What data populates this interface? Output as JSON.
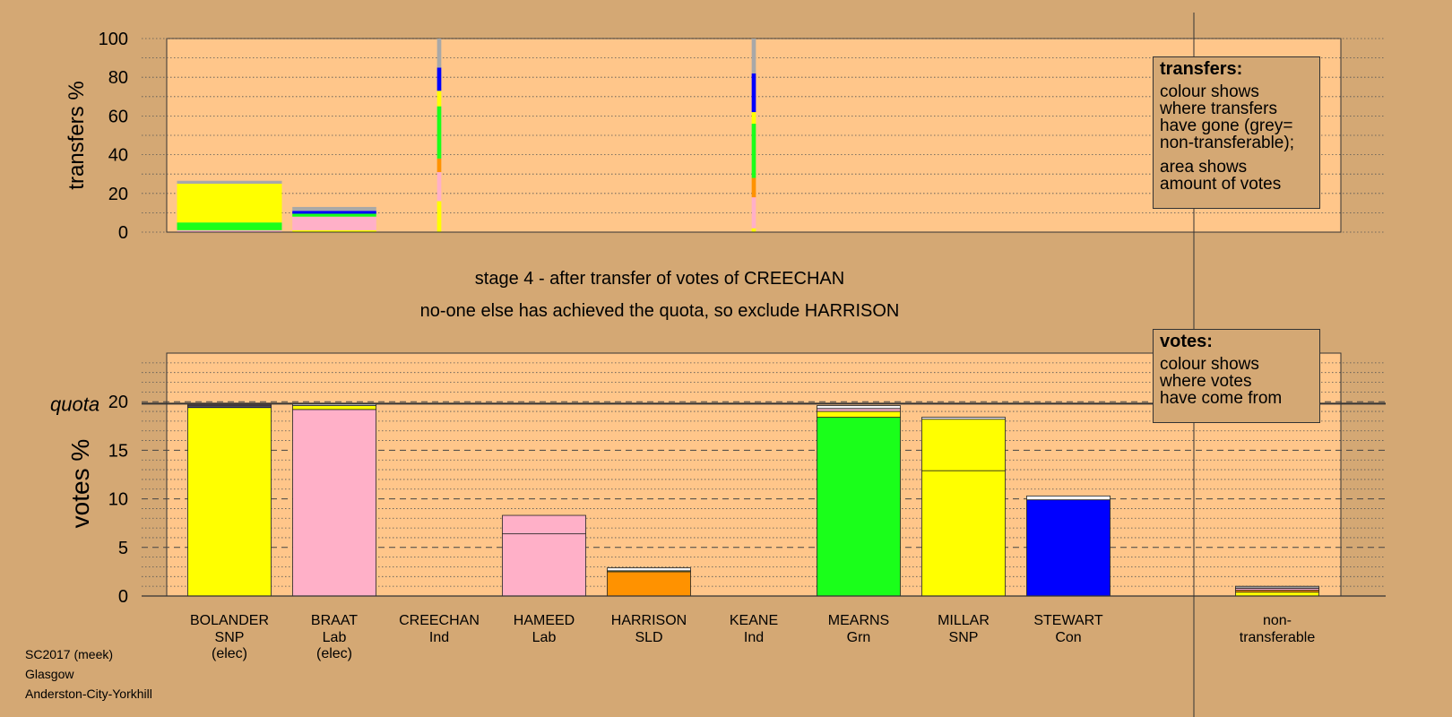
{
  "header": {
    "stage_line": "stage 4 - after transfer of votes of CREECHAN",
    "decision_line": "no-one else has achieved the quota, so exclude HARRISON"
  },
  "legends": {
    "transfers": {
      "title": "transfers:",
      "lines": [
        "colour shows",
        "where transfers",
        "have gone (grey=",
        "non-transferable);"
      ],
      "lines2": [
        "area shows",
        "amount of votes"
      ]
    },
    "votes": {
      "title": "votes:",
      "lines": [
        "colour shows",
        "where votes",
        "have come from"
      ]
    }
  },
  "footer": {
    "line1": "SC2017 (meek)",
    "line2": "Glasgow",
    "line3": "Anderston-City-Yorkhill"
  },
  "colors": {
    "background": "#d4a874",
    "plot_bg": "#ffc68a",
    "SNP": "#ffff00",
    "Lab": "#ffb0c8",
    "Grn": "#1aff1a",
    "Con": "#0000ff",
    "SLD": "#ff9200",
    "Ind": "#f5f5f5",
    "nontransferable": "#a8a8a8"
  },
  "chart_data": [
    {
      "type": "bar",
      "name": "transfers",
      "ylabel": "transfers %",
      "ylim": [
        0,
        100
      ],
      "yticks": [
        0,
        20,
        40,
        60,
        80,
        100
      ],
      "grid": true,
      "columns": [
        {
          "candidate": "BOLANDER",
          "width_fraction": 1.0,
          "segments": [
            {
              "party": "Lab",
              "value": 1
            },
            {
              "party": "Grn",
              "value": 4
            },
            {
              "party": "SNP",
              "value": 20
            },
            {
              "party": "nontransferable",
              "value": 1.5
            }
          ]
        },
        {
          "candidate": "BRAAT",
          "width_fraction": 0.8,
          "segments": [
            {
              "party": "SNP",
              "value": 1
            },
            {
              "party": "Lab",
              "value": 7
            },
            {
              "party": "Grn",
              "value": 1.5
            },
            {
              "party": "Con",
              "value": 1.5
            },
            {
              "party": "nontransferable",
              "value": 2
            }
          ]
        },
        {
          "candidate": "CREECHAN",
          "width_fraction": 0.04,
          "segments": [
            {
              "party": "SNP",
              "value": 16
            },
            {
              "party": "Lab",
              "value": 15
            },
            {
              "party": "SLD",
              "value": 7
            },
            {
              "party": "Grn",
              "value": 27
            },
            {
              "party": "SNP",
              "value": 8
            },
            {
              "party": "Con",
              "value": 12
            },
            {
              "party": "nontransferable",
              "value": 15
            }
          ]
        },
        {
          "candidate": "KEANE",
          "width_fraction": 0.04,
          "segments": [
            {
              "party": "SNP",
              "value": 2
            },
            {
              "party": "Lab",
              "value": 16
            },
            {
              "party": "SLD",
              "value": 10
            },
            {
              "party": "Grn",
              "value": 28
            },
            {
              "party": "SNP",
              "value": 6
            },
            {
              "party": "Con",
              "value": 20
            },
            {
              "party": "nontransferable",
              "value": 18
            }
          ]
        }
      ]
    },
    {
      "type": "bar",
      "name": "votes",
      "ylabel": "votes %",
      "ylim": [
        0,
        25
      ],
      "yticks": [
        0,
        5,
        10,
        15,
        20
      ],
      "quota": 19.8,
      "quota_label": "quota",
      "grid": true,
      "categories": [
        {
          "name": "BOLANDER",
          "party": "SNP",
          "status": "(elec)",
          "segments": [
            {
              "party": "SNP",
              "value": 19.4
            },
            {
              "party": "Con",
              "value": 0.1
            },
            {
              "party": "Ind",
              "value": 0.1
            },
            {
              "party": "Lab",
              "value": 0.1
            }
          ]
        },
        {
          "name": "BRAAT",
          "party": "Lab",
          "status": "(elec)",
          "segments": [
            {
              "party": "Lab",
              "value": 19.2
            },
            {
              "party": "SNP",
              "value": 0.4
            },
            {
              "party": "Ind",
              "value": 0.2
            }
          ]
        },
        {
          "name": "CREECHAN",
          "party": "Ind",
          "status": "",
          "segments": []
        },
        {
          "name": "HAMEED",
          "party": "Lab",
          "status": "",
          "segments": [
            {
              "party": "Lab",
              "value": 6.4
            },
            {
              "party": "Lab",
              "value": 1.9
            }
          ]
        },
        {
          "name": "HARRISON",
          "party": "SLD",
          "status": "",
          "segments": [
            {
              "party": "SLD",
              "value": 2.5
            },
            {
              "party": "SNP",
              "value": 0.1
            },
            {
              "party": "Ind",
              "value": 0.3
            }
          ]
        },
        {
          "name": "KEANE",
          "party": "Ind",
          "status": "",
          "segments": []
        },
        {
          "name": "MEARNS",
          "party": "Grn",
          "status": "",
          "segments": [
            {
              "party": "Grn",
              "value": 18.4
            },
            {
              "party": "SNP",
              "value": 0.6
            },
            {
              "party": "Lab",
              "value": 0.3
            },
            {
              "party": "Ind",
              "value": 0.3
            }
          ]
        },
        {
          "name": "MILLAR",
          "party": "SNP",
          "status": "",
          "segments": [
            {
              "party": "SNP",
              "value": 12.9
            },
            {
              "party": "SNP",
              "value": 5.3
            },
            {
              "party": "Ind",
              "value": 0.2
            }
          ]
        },
        {
          "name": "STEWART",
          "party": "Con",
          "status": "",
          "segments": [
            {
              "party": "Con",
              "value": 9.9
            },
            {
              "party": "Ind",
              "value": 0.4
            }
          ]
        }
      ],
      "nontransferable": {
        "label_line1": "non-",
        "label_line2": "transferable",
        "segments": [
          {
            "party": "SNP",
            "value": 0.4
          },
          {
            "party": "SLD",
            "value": 0.2
          },
          {
            "party": "Lab",
            "value": 0.2
          },
          {
            "party": "nontransferable",
            "value": 0.2
          }
        ]
      }
    }
  ]
}
